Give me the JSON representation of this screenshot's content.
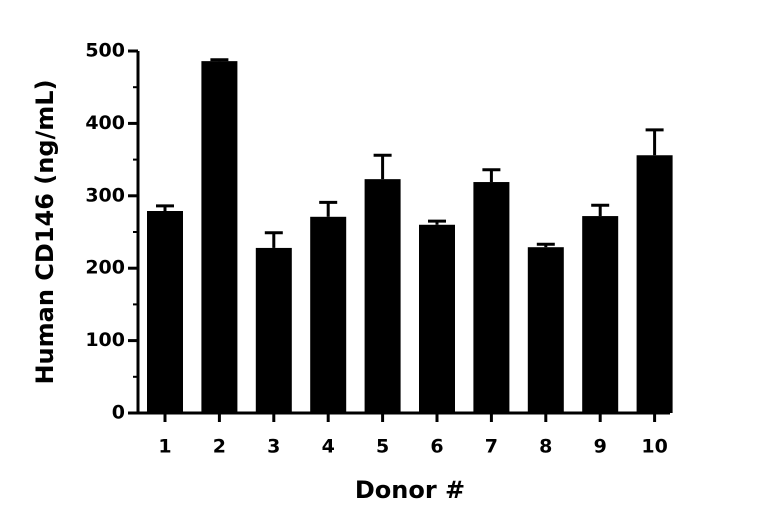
{
  "chart_data": {
    "type": "bar",
    "categories": [
      "1",
      "2",
      "3",
      "4",
      "5",
      "6",
      "7",
      "8",
      "9",
      "10"
    ],
    "values": [
      279,
      486,
      228,
      271,
      323,
      260,
      319,
      229,
      272,
      356
    ],
    "errors": [
      7,
      2,
      21,
      20,
      33,
      5,
      17,
      4,
      15,
      35
    ],
    "color": "#000000",
    "ylabel": "Human CD146 (ng/mL)",
    "xlabel": "Donor #",
    "ylim": [
      0,
      500
    ],
    "yticks": [
      0,
      100,
      200,
      300,
      400,
      500
    ],
    "yminor_ticks": [
      50,
      150,
      250,
      350,
      450
    ],
    "grid": false
  }
}
